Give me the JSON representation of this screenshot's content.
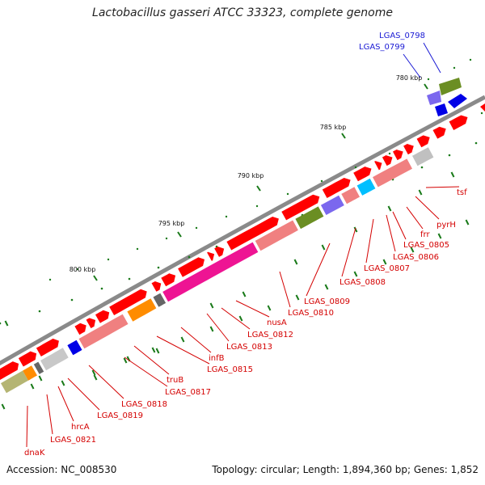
{
  "title": "Lactobacillus gasseri ATCC 33323, complete genome",
  "accession": "Accession: NC_008530",
  "summary": "Topology: circular; Length: 1,894,360 bp; Genes: 1,852",
  "colors": {
    "backbone": "#777777",
    "tick": "#1a7a1a",
    "cds": "#ff0000",
    "label_red": "#d40000",
    "label_blue": "#1a1ad4"
  },
  "ticks": [
    {
      "label": "780 kbp",
      "value": 780
    },
    {
      "label": "785 kbp",
      "value": 785
    },
    {
      "label": "790 kbp",
      "value": 790
    },
    {
      "label": "795 kbp",
      "value": 795
    },
    {
      "label": "800 kbp",
      "value": 800
    }
  ],
  "outer_labels": [
    {
      "name": "LGAS_0798",
      "color": "blue"
    },
    {
      "name": "LGAS_0799",
      "color": "blue"
    }
  ],
  "inner_labels": [
    {
      "name": "tsf"
    },
    {
      "name": "pyrH"
    },
    {
      "name": "frr"
    },
    {
      "name": "LGAS_0805"
    },
    {
      "name": "LGAS_0806"
    },
    {
      "name": "LGAS_0807"
    },
    {
      "name": "LGAS_0808"
    },
    {
      "name": "LGAS_0809"
    },
    {
      "name": "LGAS_0810"
    },
    {
      "name": "nusA"
    },
    {
      "name": "LGAS_0812"
    },
    {
      "name": "LGAS_0813"
    },
    {
      "name": "infB"
    },
    {
      "name": "LGAS_0815"
    },
    {
      "name": "truB"
    },
    {
      "name": "LGAS_0817"
    },
    {
      "name": "LGAS_0818"
    },
    {
      "name": "LGAS_0819"
    },
    {
      "name": "hrcA"
    },
    {
      "name": "LGAS_0821"
    },
    {
      "name": "dnaK"
    }
  ]
}
